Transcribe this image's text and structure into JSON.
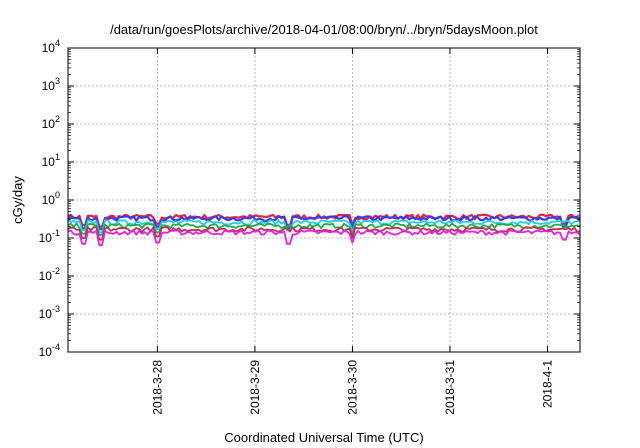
{
  "chart_data": {
    "type": "line",
    "title": "/data/run/goesPlots/archive/2018-04-01/08:00/bryn/../bryn/5daysMoon.plot",
    "xlabel": "Coordinated Universal Time (UTC)",
    "ylabel": "cGy/day",
    "yscale": "log",
    "ylim": [
      0.0001,
      10000
    ],
    "y_ticks": [
      {
        "value": 0.0001,
        "base": "10",
        "exp": "-4"
      },
      {
        "value": 0.001,
        "base": "10",
        "exp": "-3"
      },
      {
        "value": 0.01,
        "base": "10",
        "exp": "-2"
      },
      {
        "value": 0.1,
        "base": "10",
        "exp": "-1"
      },
      {
        "value": 1,
        "base": "10",
        "exp": "0"
      },
      {
        "value": 10,
        "base": "10",
        "exp": "1"
      },
      {
        "value": 100,
        "base": "10",
        "exp": "2"
      },
      {
        "value": 1000,
        "base": "10",
        "exp": "3"
      },
      {
        "value": 10000,
        "base": "10",
        "exp": "4"
      }
    ],
    "xlim": [
      "2018-03-27 02:00",
      "2018-04-01 08:00"
    ],
    "x_ticks": [
      "2018-3-28",
      "2018-3-29",
      "2018-3-30",
      "2018-3-31",
      "2018-4-1"
    ],
    "x_tick_dates": [
      "2018-03-28",
      "2018-03-29",
      "2018-03-30",
      "2018-03-31",
      "2018-04-01"
    ],
    "grid": true,
    "series": [
      {
        "color": "#e8203a",
        "base": 0.36,
        "dips": [
          [
            "2018-03-27 06:00",
            0.22
          ],
          [
            "2018-03-27 10:00",
            0.2
          ],
          [
            "2018-03-28 00:00",
            0.24
          ],
          [
            "2018-03-29 08:00",
            0.22
          ],
          [
            "2018-03-30 00:00",
            0.21
          ],
          [
            "2018-04-01 04:00",
            0.24
          ]
        ]
      },
      {
        "color": "#3a3ae8",
        "base": 0.33,
        "dips": [
          [
            "2018-03-27 06:00",
            0.18
          ],
          [
            "2018-03-27 10:00",
            0.17
          ],
          [
            "2018-03-28 00:00",
            0.2
          ],
          [
            "2018-03-29 08:00",
            0.18
          ],
          [
            "2018-03-30 00:00",
            0.17
          ],
          [
            "2018-04-01 04:00",
            0.2
          ]
        ]
      },
      {
        "color": "#1fd1e0",
        "base": 0.26,
        "dips": [
          [
            "2018-03-27 06:00",
            0.16
          ],
          [
            "2018-03-27 10:00",
            0.14
          ],
          [
            "2018-03-28 00:00",
            0.17
          ],
          [
            "2018-03-29 08:00",
            0.16
          ],
          [
            "2018-03-30 00:00",
            0.15
          ]
        ]
      },
      {
        "color": "#1ab04a",
        "base": 0.21,
        "dips": [
          [
            "2018-03-27 06:00",
            0.13
          ],
          [
            "2018-03-27 10:00",
            0.12
          ],
          [
            "2018-03-28 00:00",
            0.14
          ],
          [
            "2018-03-30 00:00",
            0.12
          ]
        ]
      },
      {
        "color": "#c0304a",
        "base": 0.17,
        "dips": [
          [
            "2018-03-27 06:00",
            0.1
          ],
          [
            "2018-03-27 10:00",
            0.09
          ],
          [
            "2018-03-28 00:00",
            0.11
          ],
          [
            "2018-03-30 00:00",
            0.1
          ]
        ]
      },
      {
        "color": "#e81ee8",
        "base": 0.14,
        "dips": [
          [
            "2018-03-27 06:00",
            0.07
          ],
          [
            "2018-03-27 10:00",
            0.065
          ],
          [
            "2018-03-28 00:00",
            0.075
          ],
          [
            "2018-03-29 08:00",
            0.07
          ],
          [
            "2018-03-30 00:00",
            0.075
          ],
          [
            "2018-04-01 04:00",
            0.09
          ]
        ]
      }
    ]
  }
}
